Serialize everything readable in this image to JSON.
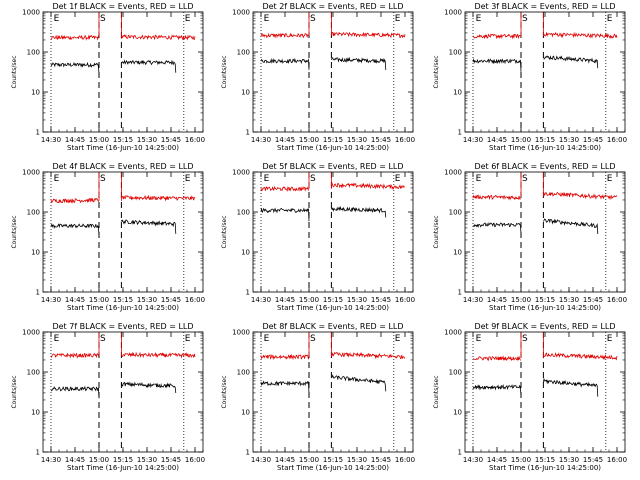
{
  "figure": {
    "x_tick_labels": [
      "14:30",
      "14:45",
      "15:00",
      "15:15",
      "15:30",
      "15:45",
      "16:00"
    ],
    "x_label": "Start Time (16-Jun-10 14:25:00)",
    "y_label": "Counts/sec",
    "y_tick_labels": [
      "1",
      "10",
      "100",
      "1000"
    ],
    "marker_labels": [
      "E",
      "S",
      "E"
    ],
    "colors": {
      "events": "#000000",
      "lld": "#e00000",
      "axes": "#000000",
      "background": "#ffffff"
    }
  },
  "chart_data": [
    {
      "type": "line",
      "title": "Det 1f BLACK = Events, RED = LLD",
      "xlabel": "Start Time (16-Jun-10 14:25:00)",
      "ylabel": "Counts/sec",
      "yscale": "log",
      "ylim": [
        1,
        1000
      ],
      "x_ticks": [
        "14:30",
        "14:45",
        "15:00",
        "15:15",
        "15:30",
        "15:45",
        "16:00"
      ],
      "series": [
        {
          "color": "#000000",
          "segments": [
            {
              "x": [
                "14:30",
                "15:00"
              ],
              "y": [
                48,
                48
              ]
            },
            {
              "x": [
                "15:14",
                "15:48"
              ],
              "y": [
                55,
                55
              ]
            }
          ]
        },
        {
          "color": "#e00000",
          "segments": [
            {
              "x": [
                "14:30",
                "15:00"
              ],
              "y": [
                230,
                230
              ]
            },
            {
              "x": [
                "15:14",
                "16:00"
              ],
              "y": [
                240,
                230
              ]
            }
          ]
        }
      ],
      "markers": [
        {
          "label": "E",
          "x": "14:31"
        },
        {
          "label": "S",
          "x": "15:00"
        },
        {
          "label": "E",
          "x": "15:53"
        }
      ]
    },
    {
      "type": "line",
      "title": "Det 2f BLACK = Events, RED = LLD",
      "xlabel": "Start Time (16-Jun-10 14:25:00)",
      "ylabel": "Counts/sec",
      "yscale": "log",
      "ylim": [
        1,
        1000
      ],
      "x_ticks": [
        "14:30",
        "14:45",
        "15:00",
        "15:15",
        "15:30",
        "15:45",
        "16:00"
      ],
      "series": [
        {
          "color": "#000000",
          "segments": [
            {
              "x": [
                "14:30",
                "15:00"
              ],
              "y": [
                60,
                60
              ]
            },
            {
              "x": [
                "15:14",
                "15:48"
              ],
              "y": [
                65,
                60
              ]
            }
          ]
        },
        {
          "color": "#e00000",
          "segments": [
            {
              "x": [
                "14:30",
                "15:00"
              ],
              "y": [
                260,
                260
              ]
            },
            {
              "x": [
                "15:14",
                "16:00"
              ],
              "y": [
                280,
                260
              ]
            }
          ]
        }
      ],
      "markers": [
        {
          "label": "E",
          "x": "14:31"
        },
        {
          "label": "S",
          "x": "15:00"
        },
        {
          "label": "E",
          "x": "15:53"
        }
      ]
    },
    {
      "type": "line",
      "title": "Det 3f BLACK = Events, RED = LLD",
      "xlabel": "Start Time (16-Jun-10 14:25:00)",
      "ylabel": "Counts/sec",
      "yscale": "log",
      "ylim": [
        1,
        1000
      ],
      "x_ticks": [
        "14:30",
        "14:45",
        "15:00",
        "15:15",
        "15:30",
        "15:45",
        "16:00"
      ],
      "series": [
        {
          "color": "#000000",
          "segments": [
            {
              "x": [
                "14:30",
                "15:00"
              ],
              "y": [
                60,
                60
              ]
            },
            {
              "x": [
                "15:14",
                "15:48"
              ],
              "y": [
                75,
                60
              ]
            }
          ]
        },
        {
          "color": "#e00000",
          "segments": [
            {
              "x": [
                "14:30",
                "15:00"
              ],
              "y": [
                250,
                250
              ]
            },
            {
              "x": [
                "15:14",
                "16:00"
              ],
              "y": [
                280,
                250
              ]
            }
          ]
        }
      ],
      "markers": [
        {
          "label": "E",
          "x": "14:31"
        },
        {
          "label": "S",
          "x": "15:00"
        },
        {
          "label": "E",
          "x": "15:53"
        }
      ]
    },
    {
      "type": "line",
      "title": "Det 4f BLACK = Events, RED = LLD",
      "xlabel": "Start Time (16-Jun-10 14:25:00)",
      "ylabel": "Counts/sec",
      "yscale": "log",
      "ylim": [
        1,
        1000
      ],
      "x_ticks": [
        "14:30",
        "14:45",
        "15:00",
        "15:15",
        "15:30",
        "15:45",
        "16:00"
      ],
      "series": [
        {
          "color": "#000000",
          "segments": [
            {
              "x": [
                "14:30",
                "15:00"
              ],
              "y": [
                45,
                45
              ]
            },
            {
              "x": [
                "15:14",
                "15:48"
              ],
              "y": [
                58,
                50
              ]
            }
          ]
        },
        {
          "color": "#e00000",
          "segments": [
            {
              "x": [
                "14:30",
                "15:00"
              ],
              "y": [
                190,
                200
              ]
            },
            {
              "x": [
                "15:14",
                "16:00"
              ],
              "y": [
                230,
                220
              ]
            }
          ]
        }
      ],
      "markers": [
        {
          "label": "E",
          "x": "14:31"
        },
        {
          "label": "S",
          "x": "15:00"
        },
        {
          "label": "E",
          "x": "15:53"
        }
      ]
    },
    {
      "type": "line",
      "title": "Det 5f BLACK = Events, RED = LLD",
      "xlabel": "Start Time (16-Jun-10 14:25:00)",
      "ylabel": "Counts/sec",
      "yscale": "log",
      "ylim": [
        1,
        1000
      ],
      "x_ticks": [
        "14:30",
        "14:45",
        "15:00",
        "15:15",
        "15:30",
        "15:45",
        "16:00"
      ],
      "series": [
        {
          "color": "#000000",
          "segments": [
            {
              "x": [
                "14:30",
                "15:00"
              ],
              "y": [
                110,
                110
              ]
            },
            {
              "x": [
                "15:14",
                "15:48"
              ],
              "y": [
                120,
                110
              ]
            }
          ]
        },
        {
          "color": "#e00000",
          "segments": [
            {
              "x": [
                "14:30",
                "15:00"
              ],
              "y": [
                380,
                380
              ]
            },
            {
              "x": [
                "15:14",
                "16:00"
              ],
              "y": [
                480,
                420
              ]
            }
          ]
        }
      ],
      "markers": [
        {
          "label": "E",
          "x": "14:31"
        },
        {
          "label": "S",
          "x": "15:00"
        },
        {
          "label": "E",
          "x": "15:53"
        }
      ]
    },
    {
      "type": "line",
      "title": "Det 6f BLACK = Events, RED = LLD",
      "xlabel": "Start Time (16-Jun-10 14:25:00)",
      "ylabel": "Counts/sec",
      "yscale": "log",
      "ylim": [
        1,
        1000
      ],
      "x_ticks": [
        "14:30",
        "14:45",
        "15:00",
        "15:15",
        "15:30",
        "15:45",
        "16:00"
      ],
      "series": [
        {
          "color": "#000000",
          "segments": [
            {
              "x": [
                "14:30",
                "15:00"
              ],
              "y": [
                48,
                48
              ]
            },
            {
              "x": [
                "15:14",
                "15:48"
              ],
              "y": [
                62,
                45
              ]
            }
          ]
        },
        {
          "color": "#e00000",
          "segments": [
            {
              "x": [
                "14:30",
                "15:00"
              ],
              "y": [
                240,
                230
              ]
            },
            {
              "x": [
                "15:14",
                "16:00"
              ],
              "y": [
                290,
                230
              ]
            }
          ]
        }
      ],
      "markers": [
        {
          "label": "E",
          "x": "14:31"
        },
        {
          "label": "S",
          "x": "15:00"
        },
        {
          "label": "E",
          "x": "15:53"
        }
      ]
    },
    {
      "type": "line",
      "title": "Det 7f BLACK = Events, RED = LLD",
      "xlabel": "Start Time (16-Jun-10 14:25:00)",
      "ylabel": "Counts/sec",
      "yscale": "log",
      "ylim": [
        1,
        1000
      ],
      "x_ticks": [
        "14:30",
        "14:45",
        "15:00",
        "15:15",
        "15:30",
        "15:45",
        "16:00"
      ],
      "series": [
        {
          "color": "#000000",
          "segments": [
            {
              "x": [
                "14:30",
                "15:00"
              ],
              "y": [
                38,
                38
              ]
            },
            {
              "x": [
                "15:14",
                "15:48"
              ],
              "y": [
                50,
                45
              ]
            }
          ]
        },
        {
          "color": "#e00000",
          "segments": [
            {
              "x": [
                "14:30",
                "15:00"
              ],
              "y": [
                260,
                260
              ]
            },
            {
              "x": [
                "15:14",
                "16:00"
              ],
              "y": [
                270,
                260
              ]
            }
          ]
        }
      ],
      "markers": [
        {
          "label": "E",
          "x": "14:31"
        },
        {
          "label": "S",
          "x": "15:00"
        },
        {
          "label": "E",
          "x": "15:53"
        }
      ]
    },
    {
      "type": "line",
      "title": "Det 8f BLACK = Events, RED = LLD",
      "xlabel": "Start Time (16-Jun-10 14:25:00)",
      "ylabel": "Counts/sec",
      "yscale": "log",
      "ylim": [
        1,
        1000
      ],
      "x_ticks": [
        "14:30",
        "14:45",
        "15:00",
        "15:15",
        "15:30",
        "15:45",
        "16:00"
      ],
      "series": [
        {
          "color": "#000000",
          "segments": [
            {
              "x": [
                "14:30",
                "15:00"
              ],
              "y": [
                52,
                52
              ]
            },
            {
              "x": [
                "15:14",
                "15:48"
              ],
              "y": [
                75,
                55
              ]
            }
          ]
        },
        {
          "color": "#e00000",
          "segments": [
            {
              "x": [
                "14:30",
                "15:00"
              ],
              "y": [
                240,
                240
              ]
            },
            {
              "x": [
                "15:14",
                "16:00"
              ],
              "y": [
                280,
                240
              ]
            }
          ]
        }
      ],
      "markers": [
        {
          "label": "E",
          "x": "14:31"
        },
        {
          "label": "S",
          "x": "15:00"
        },
        {
          "label": "E",
          "x": "15:53"
        }
      ]
    },
    {
      "type": "line",
      "title": "Det 9f BLACK = Events, RED = LLD",
      "xlabel": "Start Time (16-Jun-10 14:25:00)",
      "ylabel": "Counts/sec",
      "yscale": "log",
      "ylim": [
        1,
        1000
      ],
      "x_ticks": [
        "14:30",
        "14:45",
        "15:00",
        "15:15",
        "15:30",
        "15:45",
        "16:00"
      ],
      "series": [
        {
          "color": "#000000",
          "segments": [
            {
              "x": [
                "14:30",
                "15:00"
              ],
              "y": [
                42,
                42
              ]
            },
            {
              "x": [
                "15:14",
                "15:48"
              ],
              "y": [
                60,
                45
              ]
            }
          ]
        },
        {
          "color": "#e00000",
          "segments": [
            {
              "x": [
                "14:30",
                "15:00"
              ],
              "y": [
                220,
                220
              ]
            },
            {
              "x": [
                "15:14",
                "16:00"
              ],
              "y": [
                270,
                230
              ]
            }
          ]
        }
      ],
      "markers": [
        {
          "label": "E",
          "x": "14:31"
        },
        {
          "label": "S",
          "x": "15:00"
        },
        {
          "label": "E",
          "x": "15:53"
        }
      ]
    }
  ]
}
